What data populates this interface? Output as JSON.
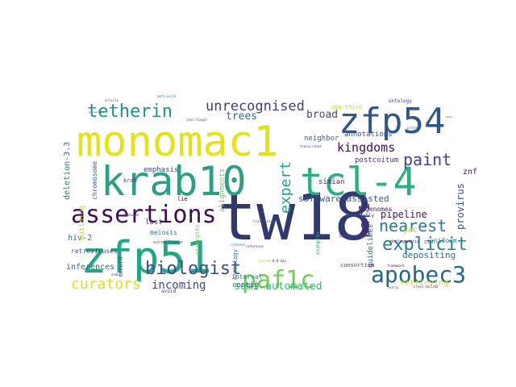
{
  "wordcloud": {
    "words": [
      {
        "text": "tw18",
        "color": "#31386b"
      },
      {
        "text": "monomac1",
        "color": "#e4e31a"
      },
      {
        "text": "krab10",
        "color": "#2aa183"
      },
      {
        "text": "zfp51",
        "color": "#22a785"
      },
      {
        "text": "zfp54",
        "color": "#2f578c"
      },
      {
        "text": "tcl-4",
        "color": "#2ab07f"
      },
      {
        "text": "assertions",
        "color": "#440a58"
      },
      {
        "text": "apobec3",
        "color": "#24678d"
      },
      {
        "text": "paf1c",
        "color": "#70ce56"
      },
      {
        "text": "tetherin",
        "color": "#1f9489"
      },
      {
        "text": "biologist",
        "color": "#3a4c8a"
      },
      {
        "text": "unrecognised",
        "color": "#3b3f84"
      },
      {
        "text": "explicit",
        "color": "#27808e"
      },
      {
        "text": "curators",
        "color": "#dce21d"
      },
      {
        "text": "paint",
        "color": "#414287"
      },
      {
        "text": "kingdoms",
        "color": "#46085c"
      },
      {
        "text": "nearest",
        "color": "#2b7a8d"
      },
      {
        "text": "expert",
        "color": "#20a486"
      },
      {
        "text": "paf1",
        "color": "#472b7a"
      },
      {
        "text": "incoming",
        "color": "#3f4788"
      },
      {
        "text": "semi-automated",
        "color": "#3bbb75"
      },
      {
        "text": "broad",
        "color": "#3e4a89"
      },
      {
        "text": "trees",
        "color": "#2f6c8e"
      },
      {
        "text": "software-assisted",
        "color": "#38588c"
      },
      {
        "text": "pipeline",
        "color": "#481769"
      },
      {
        "text": "provirus",
        "color": "#3c4f8a"
      },
      {
        "text": "depositing",
        "color": "#2c718e"
      },
      {
        "text": "deletion-3.3",
        "color": "#287d8e"
      },
      {
        "text": "yac",
        "color": "#a2da37"
      },
      {
        "text": "znf",
        "color": "#481467"
      },
      {
        "text": "hiv-2",
        "color": "#2b748e"
      },
      {
        "text": "retrieving",
        "color": "#d5e21a"
      },
      {
        "text": "inferences",
        "color": "#31668e"
      },
      {
        "text": "neighbor",
        "color": "#33638d"
      },
      {
        "text": "annotations",
        "color": "#3d4e8a"
      },
      {
        "text": "postcoitum",
        "color": "#46337f"
      },
      {
        "text": "simian",
        "color": "#472d7b"
      },
      {
        "text": "chromosome",
        "color": "#35608d"
      },
      {
        "text": "building",
        "color": "#c2df23"
      },
      {
        "text": "emphasis",
        "color": "#3e4c8a"
      },
      {
        "text": "guidelines",
        "color": "#2e6f8e"
      },
      {
        "text": "genomes",
        "color": "#482576"
      },
      {
        "text": "uniform",
        "color": "#26818e"
      },
      {
        "text": "contig",
        "color": "#32658e"
      },
      {
        "text": "lost",
        "color": "#433e85"
      },
      {
        "text": "retroviruses",
        "color": "#3c508b"
      },
      {
        "text": "alignments",
        "color": "#6ccd5a"
      },
      {
        "text": "one-third",
        "color": "#bddf26"
      },
      {
        "text": "ontology",
        "color": "#3f4889"
      },
      {
        "text": "consortium",
        "color": "#443b84"
      },
      {
        "text": "interval",
        "color": "#21918c"
      },
      {
        "text": "strengths",
        "color": "#7fd34e"
      },
      {
        "text": "orthology",
        "color": "#2c728e"
      },
      {
        "text": "phylogenetic",
        "color": "#482173"
      },
      {
        "text": "surveillance",
        "color": "#3d4d8a"
      },
      {
        "text": "examples",
        "color": "#29af7f"
      },
      {
        "text": "hundreds",
        "color": "#404588"
      },
      {
        "text": "noticeably",
        "color": "#3a538b"
      },
      {
        "text": "chr",
        "color": "#3b518b"
      },
      {
        "text": "krab",
        "color": "#3e4989"
      },
      {
        "text": "meiosis",
        "color": "#2a788e"
      },
      {
        "text": "record",
        "color": "#3e4989"
      },
      {
        "text": "avoid",
        "color": "#404688"
      },
      {
        "text": "lie",
        "color": "#440154"
      },
      {
        "text": "zinc-finger",
        "color": "#3e4989"
      },
      {
        "text": "trafficking",
        "color": "#2a778e"
      },
      {
        "text": "reference",
        "color": "#472c7a"
      },
      {
        "text": "8.8 day",
        "color": "#482475"
      },
      {
        "text": "proved",
        "color": "#9bd93c"
      },
      {
        "text": "entry",
        "color": "#3e4a89"
      },
      {
        "text": "cross-nuclear",
        "color": "#482374"
      },
      {
        "text": "closest",
        "color": "#2d708e"
      },
      {
        "text": "transcribed",
        "color": "#3a548c"
      },
      {
        "text": "framework",
        "color": "#471063"
      },
      {
        "text": "article",
        "color": "#3f4788"
      },
      {
        "text": "anti-viral",
        "color": "#31688e"
      },
      {
        "text": "polymerase",
        "color": "#3d4e8a"
      },
      {
        "text": "project",
        "color": "#2a768e"
      },
      {
        "text": "pathogen",
        "color": "#482878"
      },
      {
        "text": "enable",
        "color": "#433d84"
      },
      {
        "text": "reads",
        "color": "#3f4889"
      }
    ]
  }
}
